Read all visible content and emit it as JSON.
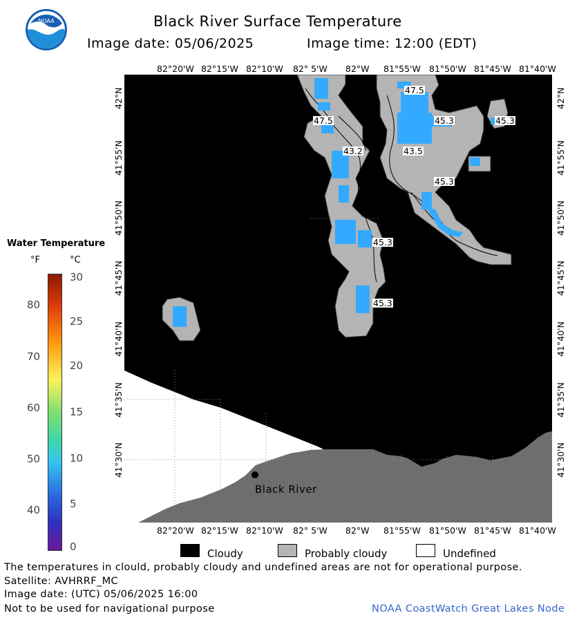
{
  "header": {
    "title": "Black River Surface Temperature",
    "image_date": "Image date: 05/06/2025",
    "image_time": "Image time: 12:00 (EDT)",
    "logo_text": "NOAA"
  },
  "axes": {
    "lon_top": [
      "82°20'W",
      "82°15'W",
      "82°10'W",
      "82° 5'W",
      "82°W",
      "81°55'W",
      "81°50'W",
      "81°45'W",
      "81°40'W"
    ],
    "lon_bottom": [
      "82°20'W",
      "82°15'W",
      "82°10'W",
      "82° 5'W",
      "82°W",
      "81°55'W",
      "81°50'W",
      "81°45'W",
      "81°40'W"
    ],
    "lat_left": [
      "42°N",
      "41°55'N",
      "41°50'N",
      "41°45'N",
      "41°40'N",
      "41°35'N",
      "41°30'N"
    ],
    "lat_right": [
      "42°N",
      "41°55'N",
      "41°50'N",
      "41°45'N",
      "41°40'N",
      "41°35'N",
      "41°30'N"
    ]
  },
  "temperature_labels": [
    "47.5",
    "47.5",
    "45.3",
    "45.3",
    "43.2",
    "43.5",
    "45.3",
    "45.3",
    "45.3"
  ],
  "place_label": "Black River",
  "colorbar": {
    "title": "Water Temperature",
    "unit_f": "°F",
    "unit_c": "°C",
    "f_ticks": [
      "80",
      "70",
      "60",
      "50",
      "40"
    ],
    "c_ticks": [
      "30",
      "25",
      "20",
      "15",
      "10",
      "5",
      "0"
    ]
  },
  "legend": {
    "cloudy": "Cloudy",
    "probably_cloudy": "Probably cloudy",
    "undefined": "Undefined"
  },
  "footer": {
    "disclaimer": "The temperatures in clould, probably cloudy and undefined areas are not for operational purpose.",
    "satellite": "Satellite: AVHRRF_MC",
    "utc_date": "Image date: (UTC) 05/06/2025  16:00",
    "nav_warning": "Not to be used for navigational purpose",
    "credit": "NOAA CoastWatch Great Lakes Node"
  },
  "colors": {
    "cloudy": "#000000",
    "probably_cloudy": "#b4b4b4",
    "undefined": "#ffffff",
    "land": "#6e6e6e",
    "water_warm": "#33aaff"
  }
}
